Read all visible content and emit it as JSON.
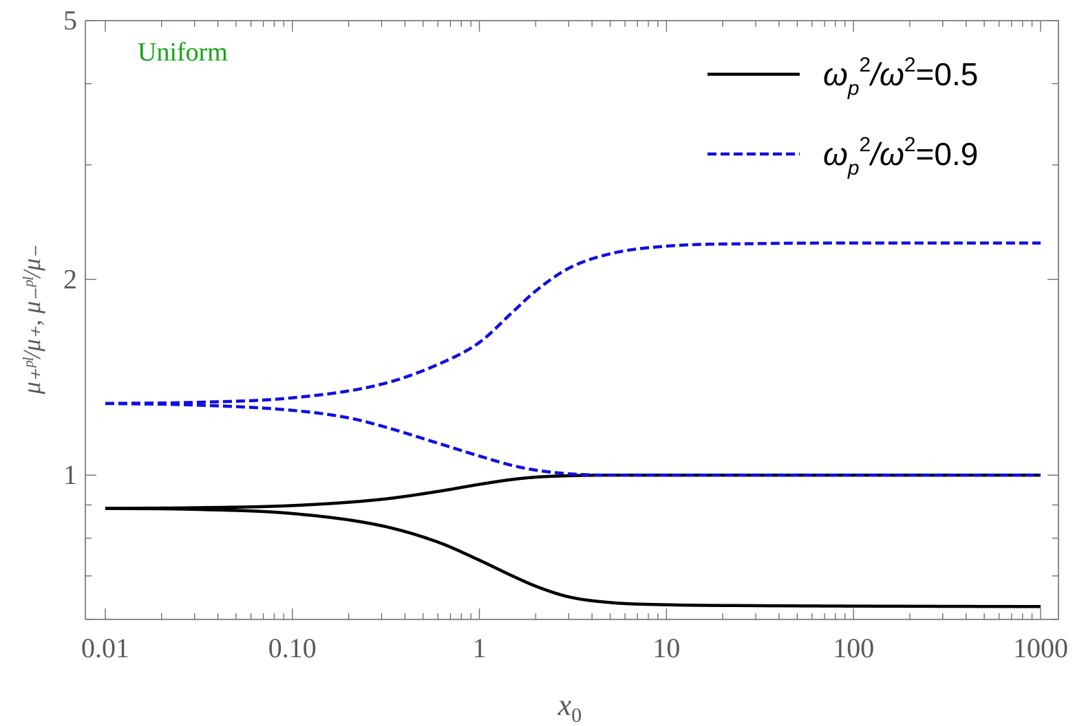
{
  "chart_data": {
    "type": "line",
    "x_scale": "log",
    "y_scale": "log",
    "xlim": [
      0.01,
      1000
    ],
    "ylim": [
      0.6,
      5
    ],
    "x_ticks": [
      {
        "value": 0.01,
        "label": "0.01"
      },
      {
        "value": 0.1,
        "label": "0.10"
      },
      {
        "value": 1,
        "label": "1"
      },
      {
        "value": 10,
        "label": "10"
      },
      {
        "value": 100,
        "label": "100"
      },
      {
        "value": 1000,
        "label": "1000"
      }
    ],
    "y_ticks": [
      {
        "value": 1,
        "label": "1"
      },
      {
        "value": 2,
        "label": "2"
      },
      {
        "value": 5,
        "label": "5"
      }
    ],
    "xlabel": {
      "main": "x",
      "sub": "0"
    },
    "ylabel": "μ₊ᵖˡ/μ₊, μ₋ᵖˡ/μ₋",
    "annotation": {
      "text": "Uniform",
      "color": "#13a613"
    },
    "legend_position": "top-right",
    "grid": false,
    "series": [
      {
        "name": "ω_p²/ω²=0.5",
        "legend": {
          "base": "ω",
          "sub": "p",
          "sup1": "2",
          "mid": "/ω",
          "sup2": "2",
          "tail": "=0.5"
        },
        "color": "#000000",
        "style": "solid",
        "curves": [
          {
            "x": [
              0.01,
              0.03,
              0.1,
              0.3,
              0.6,
              1,
              1.5,
              2,
              3,
              5,
              10,
              100,
              1000
            ],
            "y": [
              0.889,
              0.891,
              0.898,
              0.918,
              0.944,
              0.968,
              0.985,
              0.993,
              0.998,
              1.0,
              1.0,
              1.0,
              1.0
            ]
          },
          {
            "x": [
              0.01,
              0.03,
              0.1,
              0.3,
              0.6,
              1,
              1.5,
              2,
              3,
              5,
              10,
              30,
              100,
              1000
            ],
            "y": [
              0.889,
              0.886,
              0.873,
              0.836,
              0.789,
              0.74,
              0.7,
              0.675,
              0.65,
              0.637,
              0.632,
              0.63,
              0.629,
              0.628
            ]
          }
        ]
      },
      {
        "name": "ω_p²/ω²=0.9",
        "legend": {
          "base": "ω",
          "sub": "p",
          "sup1": "2",
          "mid": "/ω",
          "sup2": "2",
          "tail": "=0.9"
        },
        "color": "#1010e0",
        "style": "dashed",
        "curves": [
          {
            "x": [
              0.01,
              0.03,
              0.1,
              0.3,
              0.6,
              1,
              1.5,
              2,
              3,
              5,
              10,
              30,
              100,
              1000
            ],
            "y": [
              1.289,
              1.294,
              1.315,
              1.38,
              1.48,
              1.6,
              1.78,
              1.92,
              2.08,
              2.19,
              2.25,
              2.27,
              2.275,
              2.275
            ]
          },
          {
            "x": [
              0.01,
              0.03,
              0.1,
              0.2,
              0.3,
              0.6,
              1,
              1.5,
              2,
              3,
              5,
              10,
              1000
            ],
            "y": [
              1.289,
              1.282,
              1.258,
              1.225,
              1.19,
              1.12,
              1.07,
              1.035,
              1.018,
              1.005,
              1.0,
              1.0,
              1.0
            ]
          }
        ]
      }
    ]
  }
}
